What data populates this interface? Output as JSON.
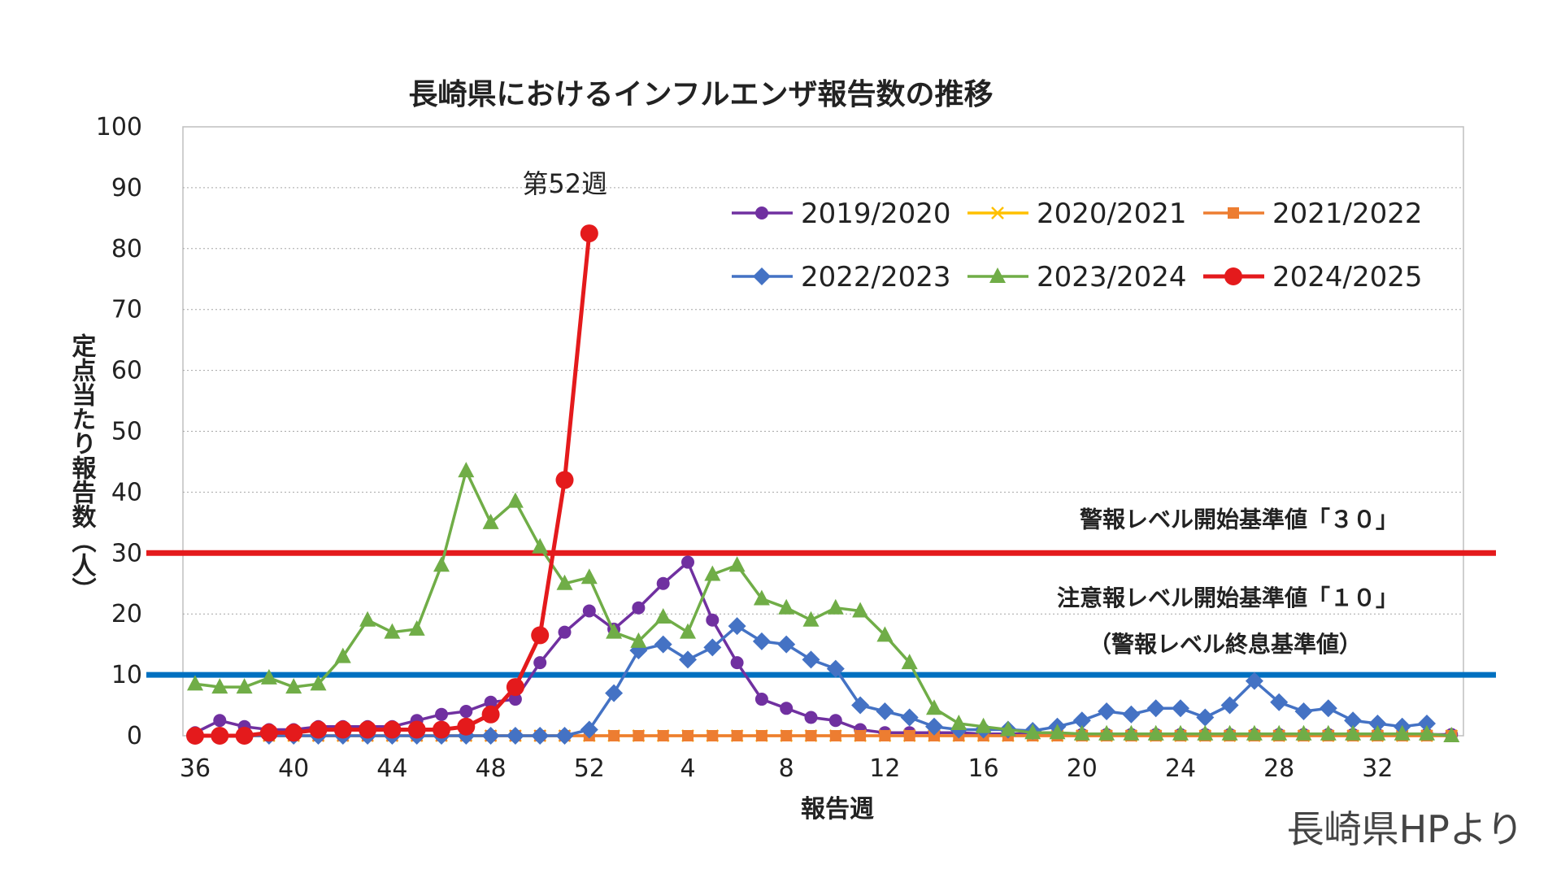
{
  "chart_data": {
    "type": "line",
    "title": "長崎県におけるインフルエンザ報告数の推移",
    "xlabel": "報告週",
    "ylabel": "定点当たり報告数（人）",
    "ylim": [
      0,
      100
    ],
    "yticks": [
      0,
      10,
      20,
      30,
      40,
      50,
      60,
      70,
      80,
      90,
      100
    ],
    "x": [
      36,
      37,
      38,
      39,
      40,
      41,
      42,
      43,
      44,
      45,
      46,
      47,
      48,
      49,
      50,
      51,
      52,
      1,
      2,
      3,
      4,
      5,
      6,
      7,
      8,
      9,
      10,
      11,
      12,
      13,
      14,
      15,
      16,
      17,
      18,
      19,
      20,
      21,
      22,
      23,
      24,
      25,
      26,
      27,
      28,
      29,
      30,
      31,
      32,
      33,
      34,
      35
    ],
    "xtick_labels": [
      "36",
      "40",
      "44",
      "48",
      "52",
      "4",
      "8",
      "12",
      "16",
      "20",
      "24",
      "28",
      "32"
    ],
    "grid": "horizontal dotted",
    "legend_position": "top-right",
    "series": [
      {
        "name": "2019/2020",
        "color": "#7030A0",
        "marker": "circle",
        "values": [
          0.5,
          2.5,
          1.5,
          1,
          1,
          1.5,
          1.5,
          1.5,
          1.5,
          2.5,
          3.5,
          4,
          5.5,
          6,
          12,
          17,
          20.5,
          17.5,
          21,
          25,
          28.5,
          19,
          12,
          6,
          4.5,
          3,
          2.5,
          1,
          0.5,
          0.5,
          0.5,
          0.5,
          0.3,
          0.3,
          0.3,
          0.3,
          0.2,
          0.2,
          0.2,
          0.2,
          0.2,
          0.2,
          0.2,
          0.2,
          0.2,
          0.2,
          0.2,
          0.2,
          0.2,
          0.2,
          0.2,
          0.2
        ]
      },
      {
        "name": "2020/2021",
        "color": "#FFC000",
        "marker": "x",
        "values": [
          0,
          0,
          0,
          0,
          0,
          0,
          0,
          0,
          0,
          0,
          0,
          0,
          0,
          0,
          0,
          0,
          0,
          0,
          0,
          0,
          0,
          0,
          0,
          0,
          0,
          0,
          0,
          0,
          0,
          0,
          0,
          0,
          0,
          0,
          0,
          0,
          0,
          0,
          0,
          0,
          0,
          0,
          0,
          0,
          0,
          0,
          0,
          0,
          0,
          0,
          0,
          0
        ]
      },
      {
        "name": "2021/2022",
        "color": "#ED7D31",
        "marker": "square",
        "values": [
          0,
          0,
          0,
          0,
          0,
          0,
          0,
          0,
          0,
          0,
          0,
          0,
          0,
          0,
          0,
          0,
          0,
          0,
          0,
          0,
          0,
          0,
          0,
          0,
          0,
          0,
          0,
          0,
          0,
          0,
          0,
          0,
          0,
          0,
          0,
          0,
          0,
          0,
          0,
          0,
          0,
          0,
          0,
          0,
          0,
          0,
          0,
          0,
          0,
          0,
          0,
          0
        ]
      },
      {
        "name": "2022/2023",
        "color": "#4472C4",
        "marker": "diamond",
        "values": [
          0,
          0,
          0,
          0,
          0,
          0,
          0,
          0,
          0,
          0,
          0,
          0,
          0,
          0,
          0,
          0,
          1,
          7,
          14,
          15,
          12.5,
          14.5,
          18,
          15.5,
          15,
          12.5,
          11,
          5,
          4,
          3,
          1.5,
          1,
          1,
          1,
          0.8,
          1.5,
          2.5,
          4,
          3.5,
          4.5,
          4.5,
          3,
          5,
          9,
          5.5,
          4,
          4.5,
          2.5,
          2,
          1.5,
          2,
          null
        ]
      },
      {
        "name": "2023/2024",
        "color": "#70AD47",
        "marker": "triangle",
        "values": [
          8.5,
          8,
          8,
          9.5,
          8,
          8.5,
          13,
          19,
          17,
          17.5,
          28,
          43.5,
          35,
          38.5,
          31,
          25,
          26,
          17,
          15.5,
          19.5,
          17,
          26.5,
          28,
          22.5,
          21,
          19,
          21,
          20.5,
          16.5,
          12,
          4.5,
          2,
          1.5,
          1,
          0.5,
          0.5,
          0.3,
          0.3,
          0.3,
          0.3,
          0.3,
          0.3,
          0.3,
          0.3,
          0.3,
          0.3,
          0.3,
          0.3,
          0.3,
          0.3,
          0.3,
          0
        ]
      },
      {
        "name": "2024/2025",
        "color": "#E41A1C",
        "marker": "circle",
        "values": [
          0,
          0,
          0,
          0.5,
          0.5,
          1,
          1,
          1,
          1,
          1,
          1,
          1.5,
          3.5,
          8,
          16.5,
          42,
          82.5,
          null,
          null,
          null,
          null,
          null,
          null,
          null,
          null,
          null,
          null,
          null,
          null,
          null,
          null,
          null,
          null,
          null,
          null,
          null,
          null,
          null,
          null,
          null,
          null,
          null,
          null,
          null,
          null,
          null,
          null,
          null,
          null,
          null,
          null,
          null
        ]
      }
    ],
    "reference_lines": [
      {
        "value": 30,
        "color": "#E41A1C",
        "label": "警報レベル開始基準値「３０」"
      },
      {
        "value": 10,
        "color": "#0070C0",
        "label": "注意報レベル開始基準値「１０」",
        "sublabel": "（警報レベル終息基準値）"
      }
    ],
    "annotations": [
      {
        "text": "第52週",
        "series": "2024/2025",
        "x": 52
      }
    ]
  },
  "credit": "長崎県HPより"
}
